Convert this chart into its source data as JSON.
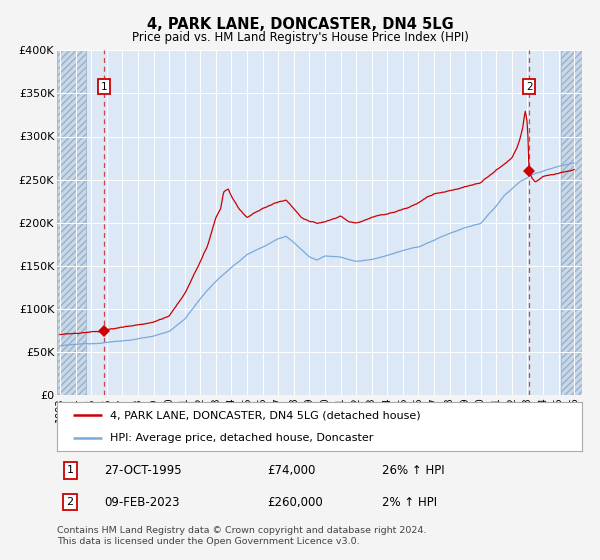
{
  "title": "4, PARK LANE, DONCASTER, DN4 5LG",
  "subtitle": "Price paid vs. HM Land Registry's House Price Index (HPI)",
  "fig_bg": "#f4f4f4",
  "plot_bg": "#dce8f5",
  "hatch_bg": "#c8d8e8",
  "grid_color": "#ffffff",
  "red_color": "#cc0000",
  "blue_color": "#7aaadd",
  "vline_color": "#cc3333",
  "ylim": [
    0,
    400000
  ],
  "yticks": [
    0,
    50000,
    100000,
    150000,
    200000,
    250000,
    300000,
    350000,
    400000
  ],
  "ytick_labels": [
    "£0",
    "£50K",
    "£100K",
    "£150K",
    "£200K",
    "£250K",
    "£300K",
    "£350K",
    "£400K"
  ],
  "xlim_start": 1992.8,
  "xlim_end": 2026.5,
  "xtick_years": [
    1993,
    1994,
    1995,
    1996,
    1997,
    1998,
    1999,
    2000,
    2001,
    2002,
    2003,
    2004,
    2005,
    2006,
    2007,
    2008,
    2009,
    2010,
    2011,
    2012,
    2013,
    2014,
    2015,
    2016,
    2017,
    2018,
    2019,
    2020,
    2021,
    2022,
    2023,
    2024,
    2025,
    2026
  ],
  "hatch_left_end": 1994.65,
  "hatch_right_start": 2025.15,
  "point1_x": 1995.82,
  "point1_y": 74000,
  "point2_x": 2023.11,
  "point2_y": 260000,
  "legend_line1": "4, PARK LANE, DONCASTER, DN4 5LG (detached house)",
  "legend_line2": "HPI: Average price, detached house, Doncaster",
  "p1_label": "1",
  "p1_date": "27-OCT-1995",
  "p1_price": "£74,000",
  "p1_hpi": "26% ↑ HPI",
  "p2_label": "2",
  "p2_date": "09-FEB-2023",
  "p2_price": "£260,000",
  "p2_hpi": "2% ↑ HPI",
  "footer": "Contains HM Land Registry data © Crown copyright and database right 2024.\nThis data is licensed under the Open Government Licence v3.0."
}
